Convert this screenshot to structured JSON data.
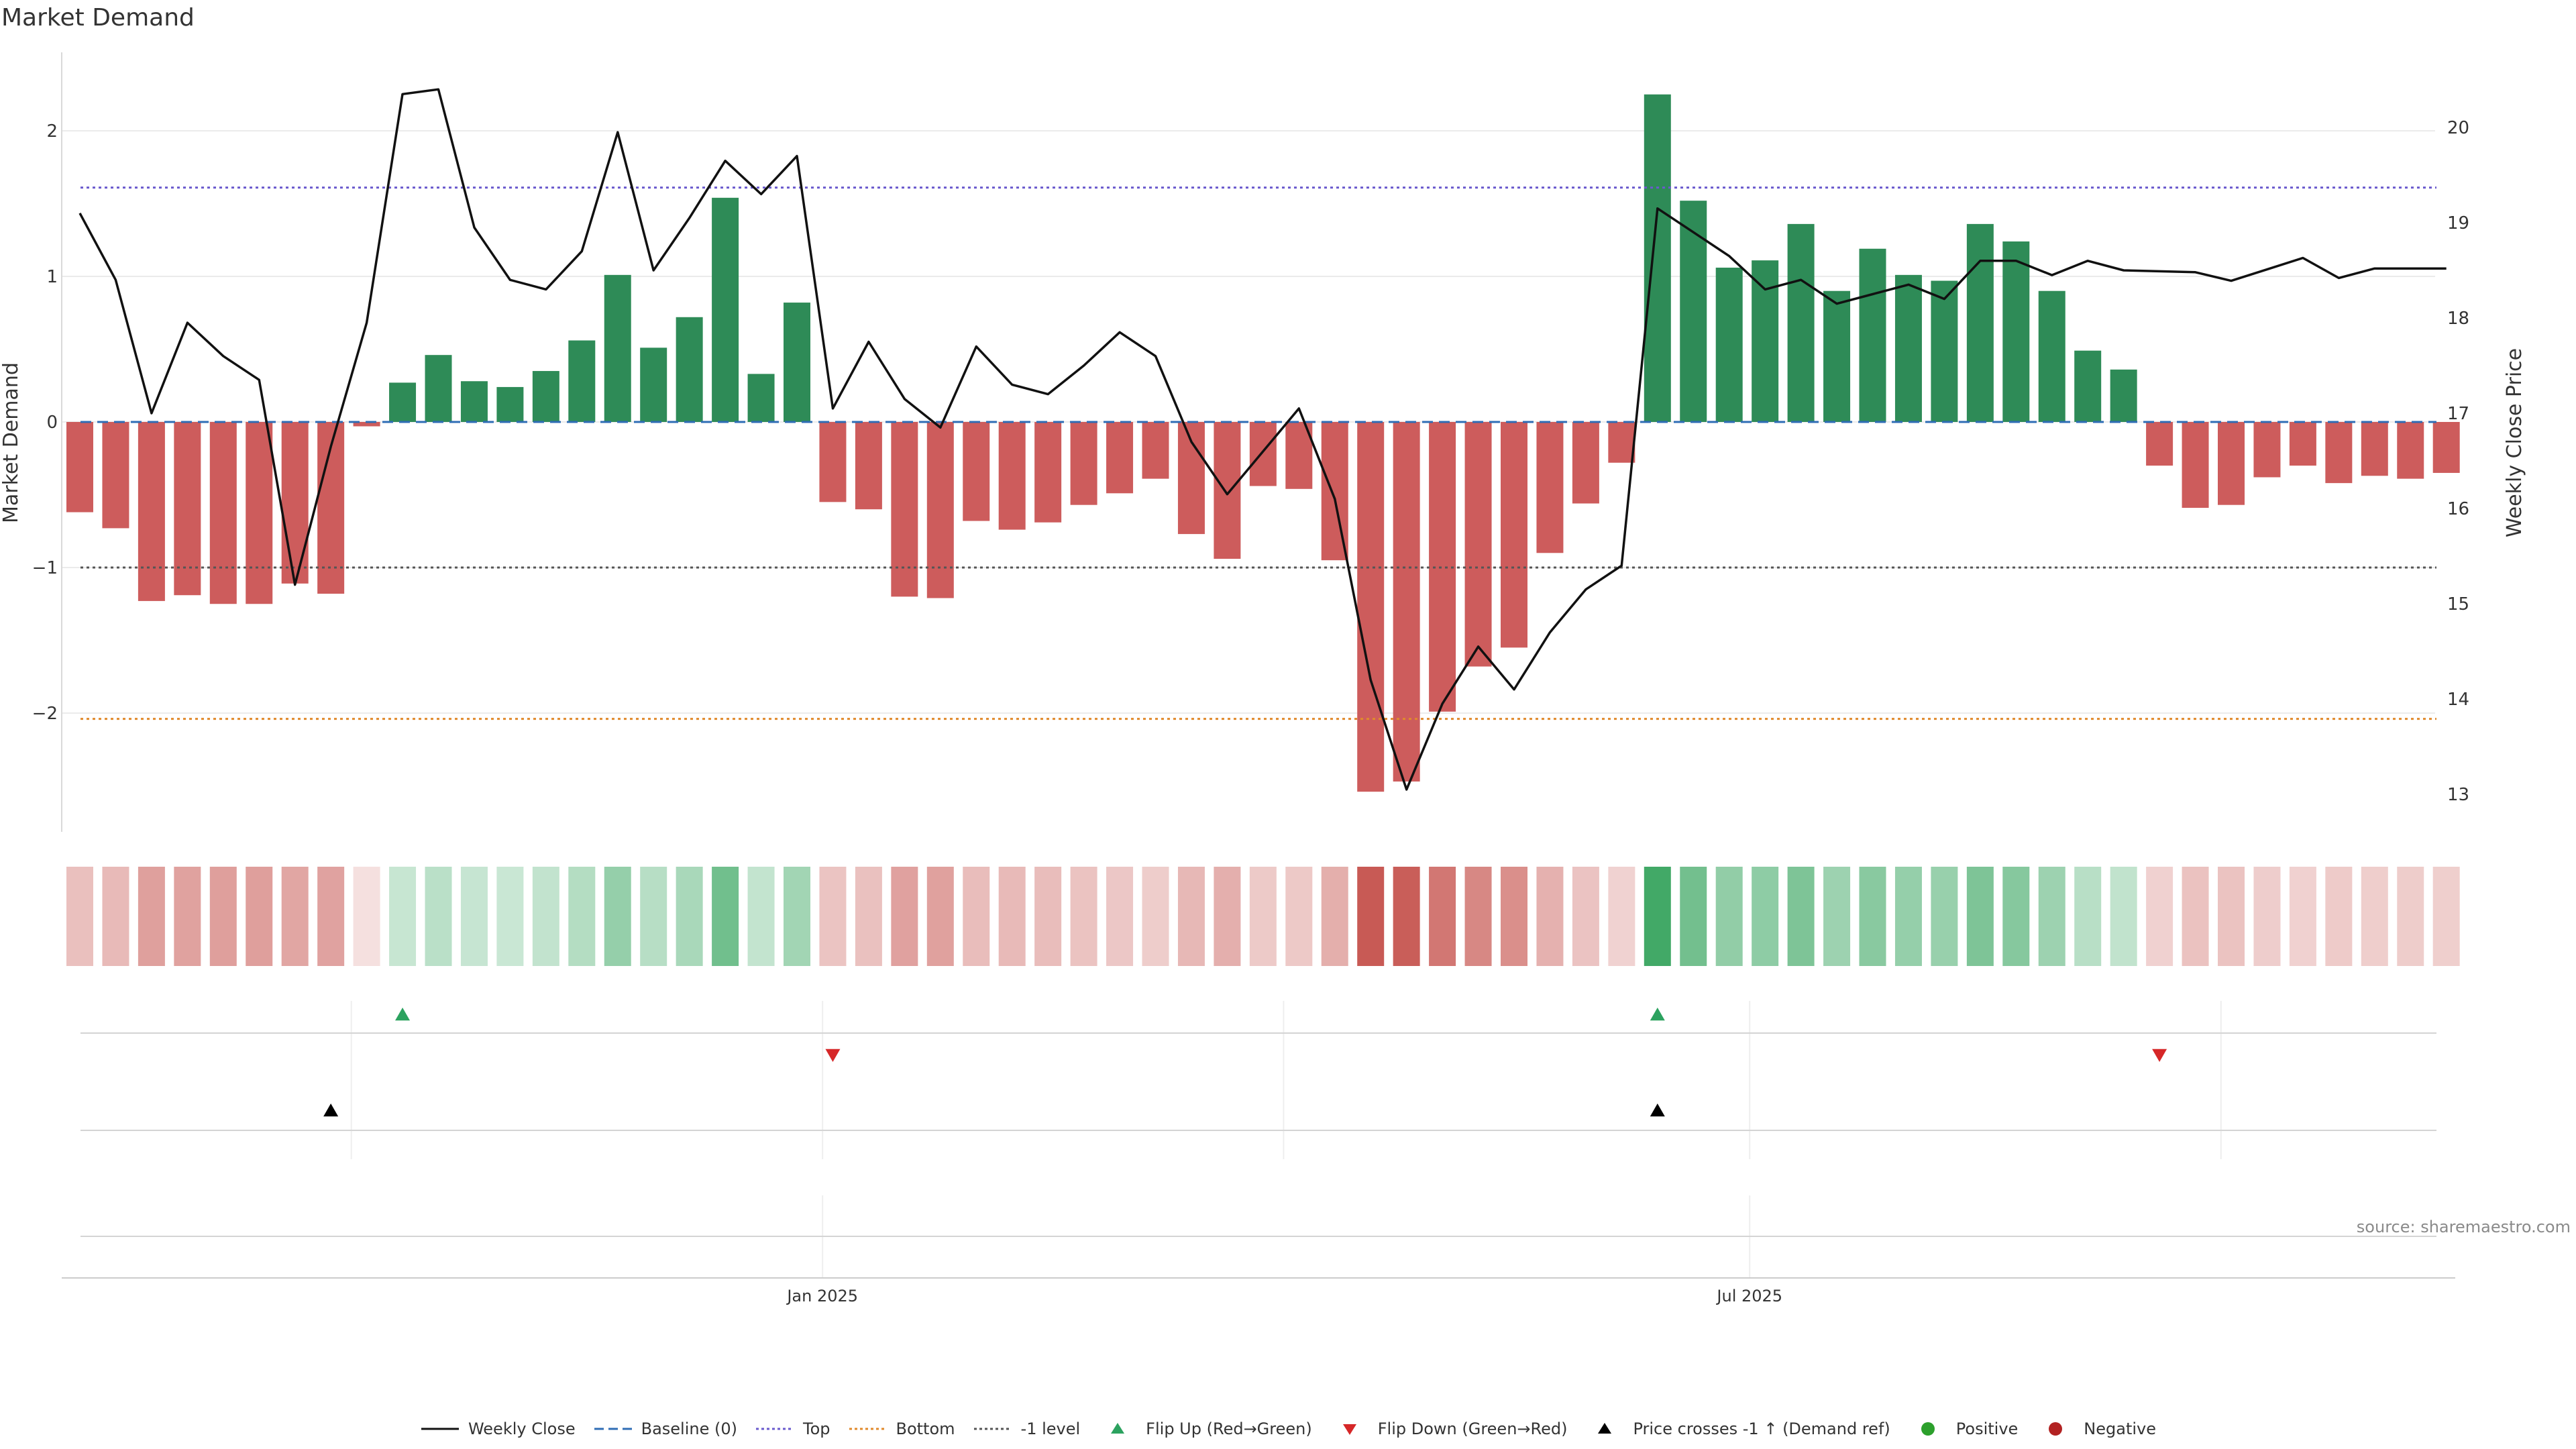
{
  "chart_data": {
    "type": "bar+line",
    "title": "Market Demand",
    "ylabel": "Market Demand",
    "y2label": "Weekly Close Price",
    "ylim": [
      -2.8,
      2.5
    ],
    "y2lim": [
      12.7,
      20.5
    ],
    "yticks": [
      2,
      1,
      0,
      -1,
      -2
    ],
    "ytick_labels": [
      "2",
      "1",
      "0",
      "−1",
      "−2"
    ],
    "y2ticks": [
      20,
      19,
      18,
      17,
      16,
      15,
      14,
      13
    ],
    "y2tick_labels": [
      "20",
      "19",
      "18",
      "17",
      "16",
      "15",
      "14",
      "13"
    ],
    "x_week_start": "2024-08-09",
    "xticks": [
      {
        "label": "Jan 2025",
        "date": "2025-01-01"
      },
      {
        "label": "Jul 2025",
        "date": "2025-07-01"
      }
    ],
    "reference_lines": {
      "baseline": 0,
      "top": 1.61,
      "bottom": -2.04,
      "minus_one": -1
    },
    "demand": [
      -0.62,
      -0.73,
      -1.23,
      -1.19,
      -1.25,
      -1.25,
      -1.11,
      -1.18,
      -0.03,
      0.27,
      0.46,
      0.28,
      0.24,
      0.35,
      0.56,
      1.01,
      0.51,
      0.72,
      1.54,
      0.33,
      0.82,
      -0.55,
      -0.6,
      -1.2,
      -1.21,
      -0.68,
      -0.74,
      -0.69,
      -0.57,
      -0.49,
      -0.39,
      -0.77,
      -0.94,
      -0.44,
      -0.46,
      -0.95,
      -2.54,
      -2.47,
      -1.99,
      -1.68,
      -1.55,
      -0.9,
      -0.56,
      -0.28,
      2.25,
      1.52,
      1.06,
      1.11,
      1.36,
      0.9,
      1.19,
      1.01,
      0.97,
      1.36,
      1.24,
      0.9,
      0.49,
      0.36,
      -0.3,
      -0.59,
      -0.57,
      -0.38,
      -0.3,
      -0.42,
      -0.37,
      -0.39,
      -0.35
    ],
    "weekly_close": [
      19.1,
      18.4,
      17.0,
      17.95,
      17.6,
      17.35,
      15.2,
      16.65,
      17.95,
      20.35,
      20.4,
      18.95,
      18.4,
      18.3,
      18.7,
      19.95,
      18.5,
      19.05,
      19.65,
      19.3,
      19.7,
      17.05,
      17.75,
      17.15,
      16.85,
      17.7,
      17.3,
      17.2,
      17.5,
      17.85,
      17.6,
      16.7,
      16.15,
      16.6,
      17.05,
      16.1,
      14.2,
      13.05,
      13.95,
      14.55,
      14.1,
      14.7,
      15.15,
      15.4,
      19.15,
      18.9,
      18.65,
      18.3,
      18.4,
      18.15,
      18.25,
      18.35,
      18.2,
      18.6,
      18.6,
      18.45,
      18.6,
      18.5,
      18.49,
      18.48,
      18.39,
      18.51,
      18.63,
      18.42,
      18.52,
      18.52,
      18.52
    ],
    "flip_up": [
      "2024-10-11",
      "2025-06-13"
    ],
    "flip_down": [
      "2025-01-03",
      "2025-09-19"
    ],
    "price_cross_up": [
      "2024-09-27",
      "2025-06-13"
    ],
    "legend": [
      {
        "label": "Weekly Close",
        "kind": "line",
        "color": "#111111"
      },
      {
        "label": "Baseline (0)",
        "kind": "dash",
        "color": "#2f6db5"
      },
      {
        "label": "Top",
        "kind": "dot",
        "color": "#6a5acd"
      },
      {
        "label": "Bottom",
        "kind": "dot",
        "color": "#e08a2c"
      },
      {
        "label": "-1 level",
        "kind": "dot",
        "color": "#555555"
      },
      {
        "label": "Flip Up (Red→Green)",
        "kind": "tri-up",
        "color": "#2ca25f"
      },
      {
        "label": "Flip Down (Green→Red)",
        "kind": "tri-down",
        "color": "#d62728"
      },
      {
        "label": "Price crosses -1 ↑ (Demand ref)",
        "kind": "tri-up",
        "color": "#000000"
      },
      {
        "label": "Positive",
        "kind": "circle",
        "color": "#2ca02c"
      },
      {
        "label": "Negative",
        "kind": "circle",
        "color": "#b22222"
      }
    ],
    "colors": {
      "positive": "#2e8b57",
      "negative": "#cd5c5c",
      "price": "#111111",
      "top": "#6a5acd",
      "bottom": "#e08a2c",
      "minus_one": "#555555",
      "baseline": "#2f6db5"
    },
    "source": "source: sharemaestro.com"
  }
}
